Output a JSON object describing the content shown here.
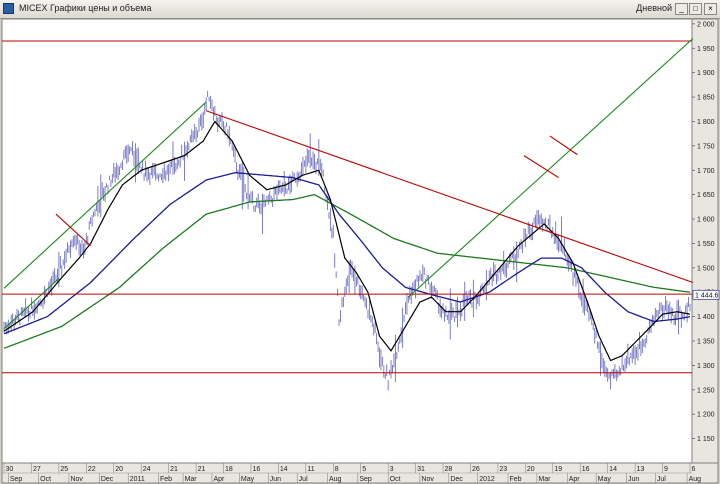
{
  "window": {
    "title": "MICEX Графики цены и объема",
    "interval": "Дневной",
    "btn_min": "_",
    "btn_max": "□",
    "btn_close": "×"
  },
  "colors": {
    "price": "#7070c0",
    "ma_short": "#000000",
    "ma_mid": "#1a1a9a",
    "ma_long": "#1e7a1e",
    "level": "#c00000",
    "channel": "#1a8a1a",
    "trend": "#c00000",
    "price_tag": "#4a4a9a"
  },
  "chart_data": {
    "type": "line",
    "title": "",
    "y_axis": {
      "position": "right",
      "ylim": [
        1100,
        2010
      ],
      "ticks": [
        1150,
        1200,
        1250,
        1300,
        1350,
        1400,
        1450,
        1500,
        1550,
        1600,
        1650,
        1700,
        1750,
        1800,
        1850,
        1900,
        1950,
        2000
      ],
      "tick_labels": [
        "1 150",
        "1 200",
        "1 250",
        "1 300",
        "1 350",
        "1 400",
        "1 450",
        "1 500",
        "1 550",
        "1 600",
        "1 650",
        "1 700",
        "1 750",
        "1 800",
        "1 850",
        "1 900",
        "1 950",
        "2 000"
      ]
    },
    "x_axis": {
      "day_ticks": [
        {
          "i": 0,
          "label": "30"
        },
        {
          "i": 19,
          "label": "27"
        },
        {
          "i": 38,
          "label": "25"
        },
        {
          "i": 57,
          "label": "22"
        },
        {
          "i": 76,
          "label": "20"
        },
        {
          "i": 95,
          "label": "24"
        },
        {
          "i": 114,
          "label": "21"
        },
        {
          "i": 133,
          "label": "21"
        },
        {
          "i": 152,
          "label": "18"
        },
        {
          "i": 171,
          "label": "16"
        },
        {
          "i": 190,
          "label": "14"
        },
        {
          "i": 209,
          "label": "11"
        },
        {
          "i": 228,
          "label": "8"
        },
        {
          "i": 247,
          "label": "5"
        },
        {
          "i": 266,
          "label": "3"
        },
        {
          "i": 285,
          "label": "31"
        },
        {
          "i": 304,
          "label": "28"
        },
        {
          "i": 323,
          "label": "26"
        },
        {
          "i": 342,
          "label": "23"
        },
        {
          "i": 361,
          "label": "20"
        },
        {
          "i": 380,
          "label": "19"
        },
        {
          "i": 399,
          "label": "16"
        },
        {
          "i": 418,
          "label": "14"
        },
        {
          "i": 437,
          "label": "13"
        },
        {
          "i": 456,
          "label": "9"
        },
        {
          "i": 475,
          "label": "6"
        }
      ],
      "month_ticks": [
        {
          "i": 3,
          "label": "Sep"
        },
        {
          "i": 24,
          "label": "Oct"
        },
        {
          "i": 45,
          "label": "Nov"
        },
        {
          "i": 66,
          "label": "Dec"
        },
        {
          "i": 86,
          "label": "2011"
        },
        {
          "i": 107,
          "label": "Feb"
        },
        {
          "i": 124,
          "label": "Mar"
        },
        {
          "i": 144,
          "label": "Apr"
        },
        {
          "i": 163,
          "label": "May"
        },
        {
          "i": 183,
          "label": "Jun"
        },
        {
          "i": 203,
          "label": "Jul"
        },
        {
          "i": 224,
          "label": "Aug"
        },
        {
          "i": 245,
          "label": "Sep"
        },
        {
          "i": 266,
          "label": "Oct"
        },
        {
          "i": 288,
          "label": "Nov"
        },
        {
          "i": 308,
          "label": "Dec"
        },
        {
          "i": 328,
          "label": "2012"
        },
        {
          "i": 349,
          "label": "Feb"
        },
        {
          "i": 369,
          "label": "Mar"
        },
        {
          "i": 390,
          "label": "Apr"
        },
        {
          "i": 410,
          "label": "May"
        },
        {
          "i": 431,
          "label": "Jun"
        },
        {
          "i": 451,
          "label": "Jul"
        },
        {
          "i": 473,
          "label": "Aug"
        }
      ]
    },
    "bars_count": 476,
    "price_anchors": [
      [
        0,
        1380
      ],
      [
        12,
        1400
      ],
      [
        25,
        1430
      ],
      [
        38,
        1490
      ],
      [
        48,
        1565
      ],
      [
        55,
        1530
      ],
      [
        62,
        1610
      ],
      [
        70,
        1660
      ],
      [
        78,
        1700
      ],
      [
        88,
        1745
      ],
      [
        95,
        1700
      ],
      [
        105,
        1690
      ],
      [
        115,
        1700
      ],
      [
        125,
        1735
      ],
      [
        135,
        1785
      ],
      [
        142,
        1855
      ],
      [
        148,
        1800
      ],
      [
        155,
        1780
      ],
      [
        162,
        1700
      ],
      [
        170,
        1640
      ],
      [
        178,
        1620
      ],
      [
        188,
        1650
      ],
      [
        198,
        1670
      ],
      [
        206,
        1700
      ],
      [
        212,
        1725
      ],
      [
        220,
        1705
      ],
      [
        228,
        1560
      ],
      [
        232,
        1400
      ],
      [
        240,
        1500
      ],
      [
        248,
        1450
      ],
      [
        256,
        1380
      ],
      [
        262,
        1300
      ],
      [
        266,
        1270
      ],
      [
        272,
        1330
      ],
      [
        280,
        1440
      ],
      [
        290,
        1490
      ],
      [
        298,
        1450
      ],
      [
        305,
        1400
      ],
      [
        312,
        1400
      ],
      [
        320,
        1430
      ],
      [
        328,
        1440
      ],
      [
        336,
        1480
      ],
      [
        345,
        1500
      ],
      [
        355,
        1530
      ],
      [
        362,
        1570
      ],
      [
        370,
        1600
      ],
      [
        378,
        1580
      ],
      [
        386,
        1550
      ],
      [
        393,
        1500
      ],
      [
        400,
        1440
      ],
      [
        408,
        1380
      ],
      [
        415,
        1300
      ],
      [
        420,
        1270
      ],
      [
        425,
        1280
      ],
      [
        430,
        1310
      ],
      [
        438,
        1330
      ],
      [
        445,
        1360
      ],
      [
        452,
        1410
      ],
      [
        458,
        1420
      ],
      [
        464,
        1400
      ],
      [
        470,
        1410
      ],
      [
        475,
        1420
      ]
    ],
    "ma_short_anchors": [
      [
        0,
        1370
      ],
      [
        20,
        1410
      ],
      [
        40,
        1480
      ],
      [
        52,
        1520
      ],
      [
        60,
        1550
      ],
      [
        72,
        1620
      ],
      [
        82,
        1670
      ],
      [
        95,
        1700
      ],
      [
        110,
        1715
      ],
      [
        125,
        1730
      ],
      [
        138,
        1760
      ],
      [
        146,
        1800
      ],
      [
        158,
        1760
      ],
      [
        170,
        1690
      ],
      [
        182,
        1660
      ],
      [
        195,
        1670
      ],
      [
        207,
        1690
      ],
      [
        218,
        1700
      ],
      [
        226,
        1640
      ],
      [
        236,
        1520
      ],
      [
        244,
        1490
      ],
      [
        252,
        1450
      ],
      [
        260,
        1360
      ],
      [
        268,
        1330
      ],
      [
        278,
        1380
      ],
      [
        288,
        1430
      ],
      [
        296,
        1440
      ],
      [
        306,
        1410
      ],
      [
        316,
        1410
      ],
      [
        326,
        1440
      ],
      [
        336,
        1475
      ],
      [
        346,
        1510
      ],
      [
        356,
        1545
      ],
      [
        366,
        1570
      ],
      [
        374,
        1590
      ],
      [
        384,
        1560
      ],
      [
        394,
        1510
      ],
      [
        404,
        1430
      ],
      [
        412,
        1360
      ],
      [
        420,
        1310
      ],
      [
        428,
        1320
      ],
      [
        438,
        1350
      ],
      [
        448,
        1380
      ],
      [
        456,
        1405
      ],
      [
        466,
        1410
      ],
      [
        475,
        1405
      ]
    ],
    "ma_mid_anchors": [
      [
        0,
        1365
      ],
      [
        30,
        1400
      ],
      [
        60,
        1470
      ],
      [
        90,
        1560
      ],
      [
        115,
        1630
      ],
      [
        140,
        1680
      ],
      [
        160,
        1695
      ],
      [
        180,
        1690
      ],
      [
        200,
        1685
      ],
      [
        218,
        1670
      ],
      [
        232,
        1610
      ],
      [
        246,
        1560
      ],
      [
        262,
        1500
      ],
      [
        278,
        1460
      ],
      [
        296,
        1445
      ],
      [
        316,
        1430
      ],
      [
        336,
        1450
      ],
      [
        356,
        1490
      ],
      [
        372,
        1520
      ],
      [
        386,
        1520
      ],
      [
        400,
        1500
      ],
      [
        416,
        1450
      ],
      [
        432,
        1410
      ],
      [
        450,
        1390
      ],
      [
        466,
        1395
      ],
      [
        475,
        1400
      ]
    ],
    "ma_long_anchors": [
      [
        0,
        1335
      ],
      [
        40,
        1380
      ],
      [
        80,
        1460
      ],
      [
        110,
        1540
      ],
      [
        140,
        1610
      ],
      [
        170,
        1635
      ],
      [
        200,
        1640
      ],
      [
        215,
        1650
      ],
      [
        240,
        1610
      ],
      [
        270,
        1560
      ],
      [
        300,
        1530
      ],
      [
        330,
        1520
      ],
      [
        360,
        1510
      ],
      [
        390,
        1500
      ],
      [
        420,
        1480
      ],
      [
        450,
        1460
      ],
      [
        475,
        1450
      ]
    ],
    "annotations": {
      "resistance_level": 1965,
      "middle_level": 1446,
      "support_level": 1285,
      "last_price_label": "1 444.6",
      "last_price": 1444.6,
      "trendlines": [
        {
          "role": "channel",
          "from": [
            0,
            1458
          ],
          "to": [
            140,
            1840
          ]
        },
        {
          "role": "channel",
          "from": [
            0,
            1375
          ],
          "to": [
            38,
            1478
          ]
        },
        {
          "role": "channel",
          "from": [
            280,
            1440
          ],
          "to": [
            477,
            1970
          ]
        },
        {
          "role": "downtrend",
          "from": [
            140,
            1822
          ],
          "to": [
            477,
            1470
          ]
        },
        {
          "role": "cross",
          "from": [
            36,
            1610
          ],
          "to": [
            60,
            1545
          ]
        },
        {
          "role": "cross",
          "from": [
            360,
            1730
          ],
          "to": [
            384,
            1685
          ]
        },
        {
          "role": "cross",
          "from": [
            378,
            1770
          ],
          "to": [
            397,
            1732
          ]
        }
      ]
    }
  }
}
